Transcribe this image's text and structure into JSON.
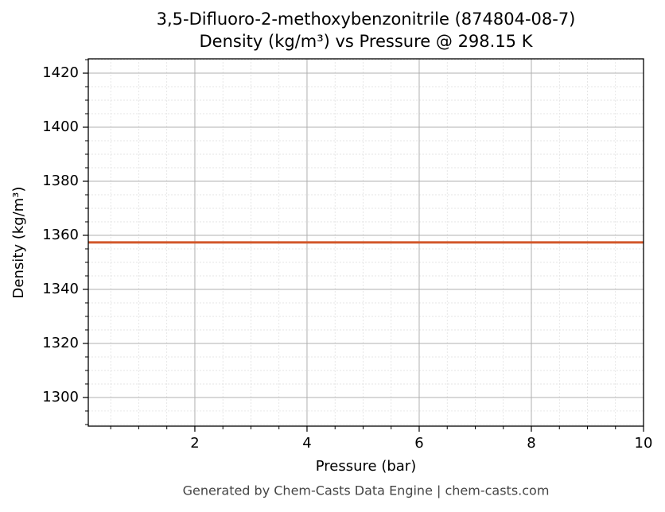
{
  "chart_data": {
    "type": "line",
    "title": "3,5-Difluoro-2-methoxybenzonitrile (874804-08-7)",
    "subtitle": "Density (kg/m³) vs Pressure @ 298.15 K",
    "x_label": "Pressure (bar)",
    "y_label": "Density (kg/m³)",
    "footer": "Generated by Chem-Casts Data Engine | chem-casts.com",
    "x": [
      0.1,
      10
    ],
    "series": [
      {
        "name": "Density",
        "color": "#d2572a",
        "values": [
          1357.4,
          1357.4
        ]
      }
    ],
    "xlim": [
      0.1,
      10
    ],
    "xticks": [
      2,
      4,
      6,
      8,
      10
    ],
    "ylim": [
      1289.4,
      1425.3
    ],
    "yticks": [
      1300,
      1320,
      1340,
      1360,
      1380,
      1400,
      1420
    ],
    "grid": true
  }
}
